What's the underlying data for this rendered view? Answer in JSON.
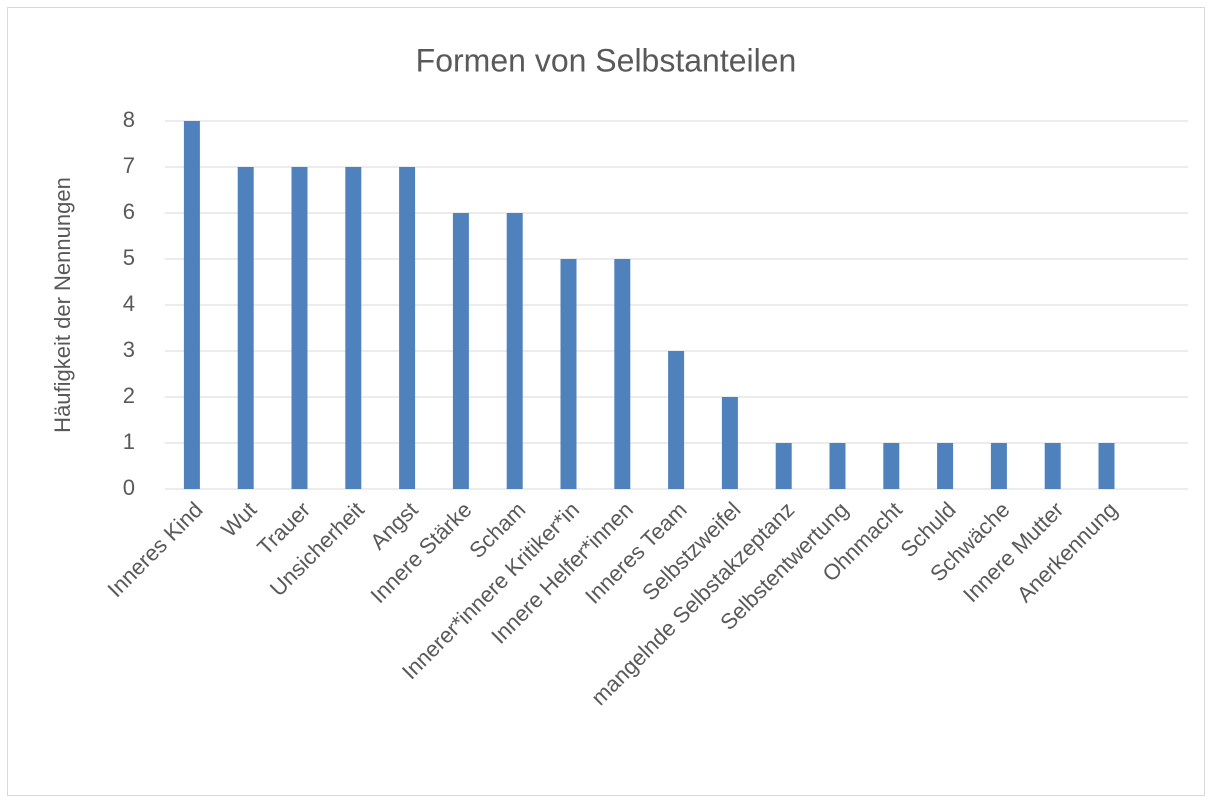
{
  "chart_data": {
    "type": "bar",
    "title": "Formen von Selbstanteilen",
    "ylabel": "Häufigkeit der Nennungen",
    "categories": [
      "Inneres Kind",
      "Wut",
      "Trauer",
      "Unsicherheit",
      "Angst",
      "Innere Stärke",
      "Scham",
      "Innerer*innere Kritiker*in",
      "Innere Helfer*innen",
      "Inneres Team",
      "Selbstzweifel",
      "mangelnde Selbstakzeptanz",
      "Selbstentwertung",
      "Ohnmacht",
      "Schuld",
      "Schwäche",
      "Innere Mutter",
      "Anerkennung"
    ],
    "values": [
      8,
      7,
      7,
      7,
      7,
      6,
      6,
      5,
      5,
      3,
      2,
      1,
      1,
      1,
      1,
      1,
      1,
      1
    ],
    "color": "#4f81bd",
    "ylim": [
      0,
      8
    ],
    "yticks": [
      0,
      1,
      2,
      3,
      4,
      5,
      6,
      7,
      8
    ],
    "grid": true
  }
}
